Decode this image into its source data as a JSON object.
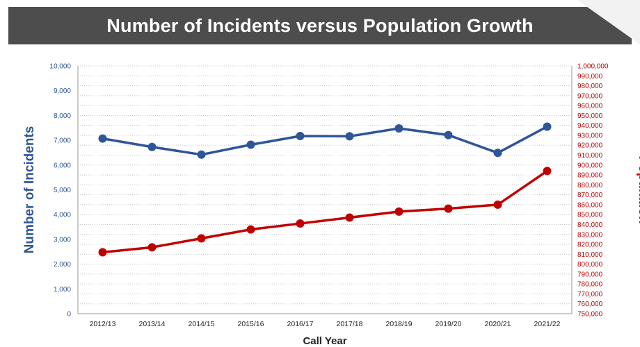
{
  "header": {
    "title": "Number of Incidents versus Population Growth"
  },
  "chart_data": {
    "type": "line",
    "title": "Number of Incidents versus Population Growth",
    "xlabel": "Call Year",
    "ylabel_left": "Number of Incidents",
    "ylabel_right": "Population",
    "categories": [
      "2012/13",
      "2013/14",
      "2014/15",
      "2015/16",
      "2016/17",
      "2017/18",
      "2018/19",
      "2019/20",
      "2020/21",
      "2021/22"
    ],
    "left_axis": {
      "ylim": [
        0,
        10000
      ],
      "ticks": [
        {
          "value": 0,
          "label": "0"
        },
        {
          "value": 1000,
          "label": "1,000"
        },
        {
          "value": 2000,
          "label": "2,000"
        },
        {
          "value": 3000,
          "label": "3,000"
        },
        {
          "value": 4000,
          "label": "4,000"
        },
        {
          "value": 5000,
          "label": "5,000"
        },
        {
          "value": 6000,
          "label": "6,000"
        },
        {
          "value": 7000,
          "label": "7,000"
        },
        {
          "value": 8000,
          "label": "8,000"
        },
        {
          "value": 9000,
          "label": "9,000"
        },
        {
          "value": 10000,
          "label": "10,000"
        }
      ],
      "color": "#2e5597"
    },
    "right_axis": {
      "ylim": [
        750000,
        1000000
      ],
      "ticks": [
        {
          "value": 750000,
          "label": "750,000"
        },
        {
          "value": 760000,
          "label": "760,000"
        },
        {
          "value": 770000,
          "label": "770,000"
        },
        {
          "value": 780000,
          "label": "780,000"
        },
        {
          "value": 790000,
          "label": "790,000"
        },
        {
          "value": 800000,
          "label": "800,000"
        },
        {
          "value": 810000,
          "label": "810,000"
        },
        {
          "value": 820000,
          "label": "820,000"
        },
        {
          "value": 830000,
          "label": "830,000"
        },
        {
          "value": 840000,
          "label": "840,000"
        },
        {
          "value": 850000,
          "label": "850,000"
        },
        {
          "value": 860000,
          "label": "860,000"
        },
        {
          "value": 870000,
          "label": "870,000"
        },
        {
          "value": 880000,
          "label": "880,000"
        },
        {
          "value": 890000,
          "label": "890,000"
        },
        {
          "value": 900000,
          "label": "900,000"
        },
        {
          "value": 910000,
          "label": "910,000"
        },
        {
          "value": 920000,
          "label": "920,000"
        },
        {
          "value": 930000,
          "label": "930,000"
        },
        {
          "value": 940000,
          "label": "940,000"
        },
        {
          "value": 950000,
          "label": "950,000"
        },
        {
          "value": 960000,
          "label": "960,000"
        },
        {
          "value": 970000,
          "label": "970,000"
        },
        {
          "value": 980000,
          "label": "980,000"
        },
        {
          "value": 990000,
          "label": "990,000"
        },
        {
          "value": 1000000,
          "label": "1,000,000"
        }
      ],
      "color": "#c00000"
    },
    "series": [
      {
        "axis": "left",
        "color": "#2e5597",
        "values": [
          7070,
          6730,
          6420,
          6820,
          7170,
          7160,
          7480,
          7210,
          6490,
          7550
        ]
      },
      {
        "axis": "right",
        "color": "#c00000",
        "values": [
          812000,
          817000,
          826000,
          835000,
          841000,
          847000,
          853000,
          856000,
          860000,
          894000
        ]
      }
    ],
    "grid": true,
    "legend": "none"
  }
}
